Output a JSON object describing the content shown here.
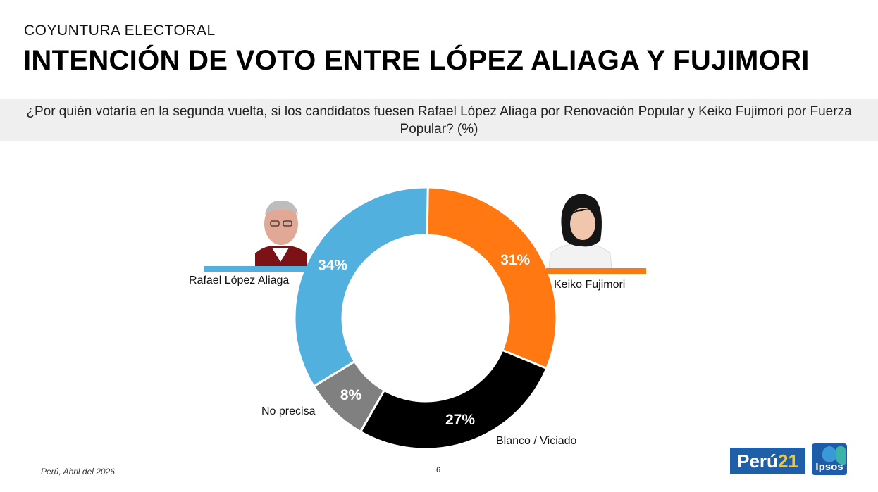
{
  "header": {
    "kicker": "COYUNTURA ELECTORAL",
    "title": "INTENCIÓN DE VOTO ENTRE LÓPEZ ALIAGA Y FUJIMORI"
  },
  "question": "¿Por quién votaría en la segunda vuelta, si los candidatos fuesen Rafael López Aliaga  por Renovación Popular y Keiko Fujimori por Fuerza Popular?  (%)",
  "chart_data": {
    "type": "pie",
    "title": "",
    "slices": [
      {
        "label": "Keiko   Fujimori",
        "value": 31,
        "display": "31%",
        "color": "#ff7811"
      },
      {
        "label": "Blanco / Viciado",
        "value": 27,
        "display": "27%",
        "color": "#000000"
      },
      {
        "label": "No precisa",
        "value": 8,
        "display": "8%",
        "color": "#808080"
      },
      {
        "label": "Rafael López Aliaga",
        "value": 34,
        "display": "34%",
        "color": "#52b0de"
      }
    ],
    "start_angle_deg": 1,
    "style": "donut"
  },
  "photos": {
    "left": "portrait-rafael-lopez-aliaga",
    "right": "portrait-keiko-fujimori"
  },
  "footer": {
    "source": "Perú, Abril del 2026",
    "page": "6",
    "logo_peru_word": "Perú",
    "logo_peru_num": "21",
    "logo_ipsos": "Ipsos"
  }
}
